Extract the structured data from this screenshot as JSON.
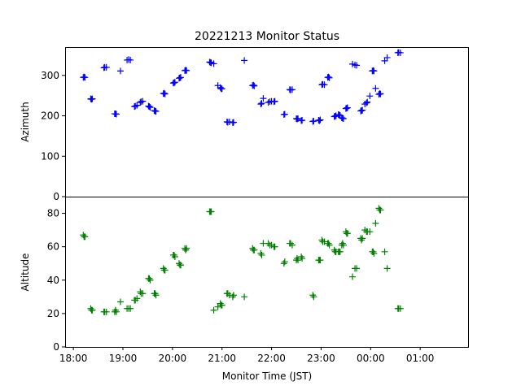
{
  "chart_data": {
    "type": "scatter",
    "title": "20221213 Monitor Status",
    "xlabel": "Monitor Time (JST)",
    "x_ticks": [
      "18:00",
      "19:00",
      "20:00",
      "21:00",
      "22:00",
      "23:00",
      "00:00",
      "01:00"
    ],
    "x_range": [
      "17:50",
      "01:58"
    ],
    "marker": "+",
    "panels": [
      {
        "ylabel": "Azimuth",
        "ylim": [
          0,
          370
        ],
        "y_ticks": [
          0,
          100,
          200,
          300
        ],
        "color": "#0000ff",
        "points": [
          [
            "18:12",
            295
          ],
          [
            "18:13",
            296
          ],
          [
            "18:14",
            295
          ],
          [
            "18:21",
            242
          ],
          [
            "18:22",
            241
          ],
          [
            "18:23",
            242
          ],
          [
            "18:37",
            319
          ],
          [
            "18:38",
            320
          ],
          [
            "18:40",
            320
          ],
          [
            "18:50",
            205
          ],
          [
            "18:51",
            205
          ],
          [
            "18:52",
            204
          ],
          [
            "18:57",
            311
          ],
          [
            "19:05",
            338
          ],
          [
            "19:07",
            339
          ],
          [
            "19:09",
            338
          ],
          [
            "19:14",
            223
          ],
          [
            "19:15",
            224
          ],
          [
            "19:17",
            226
          ],
          [
            "19:21",
            233
          ],
          [
            "19:22",
            235
          ],
          [
            "19:24",
            236
          ],
          [
            "19:31",
            224
          ],
          [
            "19:32",
            223
          ],
          [
            "19:33",
            221
          ],
          [
            "19:38",
            213
          ],
          [
            "19:39",
            212
          ],
          [
            "19:40",
            211
          ],
          [
            "19:49",
            255
          ],
          [
            "19:50",
            256
          ],
          [
            "19:51",
            254
          ],
          [
            "20:01",
            281
          ],
          [
            "20:02",
            282
          ],
          [
            "20:03",
            283
          ],
          [
            "20:08",
            293
          ],
          [
            "20:09",
            294
          ],
          [
            "20:10",
            295
          ],
          [
            "20:15",
            312
          ],
          [
            "20:16",
            313
          ],
          [
            "20:17",
            312
          ],
          [
            "20:45",
            333
          ],
          [
            "20:46",
            332
          ],
          [
            "20:47",
            331
          ],
          [
            "20:50",
            329
          ],
          [
            "20:55",
            275
          ],
          [
            "20:58",
            270
          ],
          [
            "20:59",
            267
          ],
          [
            "21:00",
            267
          ],
          [
            "21:06",
            185
          ],
          [
            "21:07",
            184
          ],
          [
            "21:09",
            185
          ],
          [
            "21:13",
            183
          ],
          [
            "21:14",
            184
          ],
          [
            "21:27",
            337
          ],
          [
            "21:37",
            275
          ],
          [
            "21:38",
            276
          ],
          [
            "21:39",
            274
          ],
          [
            "21:47",
            229
          ],
          [
            "21:48",
            231
          ],
          [
            "21:50",
            243
          ],
          [
            "21:56",
            233
          ],
          [
            "21:58",
            235
          ],
          [
            "22:00",
            236
          ],
          [
            "22:03",
            235
          ],
          [
            "22:04",
            236
          ],
          [
            "22:15",
            203
          ],
          [
            "22:16",
            204
          ],
          [
            "22:22",
            265
          ],
          [
            "22:23",
            264
          ],
          [
            "22:25",
            265
          ],
          [
            "22:30",
            193
          ],
          [
            "22:31",
            192
          ],
          [
            "22:32",
            193
          ],
          [
            "22:36",
            188
          ],
          [
            "22:37",
            189
          ],
          [
            "22:50",
            186
          ],
          [
            "22:51",
            187
          ],
          [
            "22:57",
            189
          ],
          [
            "22:58",
            188
          ],
          [
            "22:59",
            190
          ],
          [
            "23:01",
            277
          ],
          [
            "23:02",
            278
          ],
          [
            "23:04",
            277
          ],
          [
            "23:08",
            295
          ],
          [
            "23:09",
            296
          ],
          [
            "23:10",
            294
          ],
          [
            "23:16",
            198
          ],
          [
            "23:17",
            199
          ],
          [
            "23:18",
            200
          ],
          [
            "23:21",
            203
          ],
          [
            "23:22",
            202
          ],
          [
            "23:23",
            201
          ],
          [
            "23:25",
            195
          ],
          [
            "23:26",
            194
          ],
          [
            "23:27",
            193
          ],
          [
            "23:30",
            218
          ],
          [
            "23:31",
            219
          ],
          [
            "23:32",
            220
          ],
          [
            "23:38",
            328
          ],
          [
            "23:41",
            326
          ],
          [
            "23:43",
            325
          ],
          [
            "23:48",
            212
          ],
          [
            "23:49",
            213
          ],
          [
            "23:50",
            214
          ],
          [
            "23:53",
            229
          ],
          [
            "23:55",
            232
          ],
          [
            "23:56",
            234
          ],
          [
            "23:59",
            249
          ],
          [
            "00:02",
            311
          ],
          [
            "00:03",
            312
          ],
          [
            "00:04",
            311
          ],
          [
            "00:06",
            268
          ],
          [
            "00:10",
            253
          ],
          [
            "00:11",
            255
          ],
          [
            "00:12",
            254
          ],
          [
            "00:17",
            336
          ],
          [
            "00:20",
            344
          ],
          [
            "00:33",
            356
          ],
          [
            "00:34",
            357
          ],
          [
            "00:36",
            356
          ]
        ]
      },
      {
        "ylabel": "Altitude",
        "ylim": [
          0,
          90
        ],
        "y_ticks": [
          0,
          20,
          40,
          60,
          80
        ],
        "color": "#008000",
        "points": [
          [
            "18:12",
            67
          ],
          [
            "18:13",
            66
          ],
          [
            "18:14",
            66
          ],
          [
            "18:21",
            23
          ],
          [
            "18:22",
            22
          ],
          [
            "18:23",
            22
          ],
          [
            "18:37",
            21
          ],
          [
            "18:38",
            21
          ],
          [
            "18:40",
            21
          ],
          [
            "18:50",
            21
          ],
          [
            "18:51",
            22
          ],
          [
            "18:52",
            21
          ],
          [
            "18:57",
            27
          ],
          [
            "19:05",
            23
          ],
          [
            "19:07",
            23
          ],
          [
            "19:09",
            23
          ],
          [
            "19:14",
            28
          ],
          [
            "19:15",
            28
          ],
          [
            "19:17",
            29
          ],
          [
            "19:21",
            33
          ],
          [
            "19:22",
            32
          ],
          [
            "19:24",
            32
          ],
          [
            "19:31",
            41
          ],
          [
            "19:32",
            41
          ],
          [
            "19:33",
            40
          ],
          [
            "19:38",
            32
          ],
          [
            "19:39",
            32
          ],
          [
            "19:40",
            31
          ],
          [
            "19:49",
            47
          ],
          [
            "19:50",
            46
          ],
          [
            "19:51",
            46
          ],
          [
            "20:01",
            55
          ],
          [
            "20:02",
            55
          ],
          [
            "20:03",
            54
          ],
          [
            "20:08",
            50
          ],
          [
            "20:09",
            49
          ],
          [
            "20:10",
            49
          ],
          [
            "20:15",
            59
          ],
          [
            "20:16",
            58
          ],
          [
            "20:17",
            59
          ],
          [
            "20:45",
            81
          ],
          [
            "20:46",
            81
          ],
          [
            "20:47",
            81
          ],
          [
            "20:50",
            22
          ],
          [
            "20:55",
            24
          ],
          [
            "20:58",
            26
          ],
          [
            "20:59",
            25
          ],
          [
            "21:00",
            25
          ],
          [
            "21:06",
            32
          ],
          [
            "21:07",
            32
          ],
          [
            "21:09",
            31
          ],
          [
            "21:13",
            30
          ],
          [
            "21:14",
            31
          ],
          [
            "21:27",
            30
          ],
          [
            "21:37",
            59
          ],
          [
            "21:38",
            58
          ],
          [
            "21:39",
            58
          ],
          [
            "21:47",
            56
          ],
          [
            "21:48",
            55
          ],
          [
            "21:50",
            62
          ],
          [
            "21:56",
            62
          ],
          [
            "21:58",
            61
          ],
          [
            "22:00",
            61
          ],
          [
            "22:03",
            60
          ],
          [
            "22:04",
            60
          ],
          [
            "22:15",
            50
          ],
          [
            "22:16",
            51
          ],
          [
            "22:22",
            62
          ],
          [
            "22:23",
            62
          ],
          [
            "22:25",
            61
          ],
          [
            "22:30",
            52
          ],
          [
            "22:31",
            53
          ],
          [
            "22:32",
            52
          ],
          [
            "22:36",
            54
          ],
          [
            "22:37",
            53
          ],
          [
            "22:50",
            31
          ],
          [
            "22:51",
            30
          ],
          [
            "22:57",
            52
          ],
          [
            "22:58",
            52
          ],
          [
            "22:59",
            52
          ],
          [
            "23:01",
            64
          ],
          [
            "23:02",
            63
          ],
          [
            "23:04",
            63
          ],
          [
            "23:08",
            62
          ],
          [
            "23:09",
            62
          ],
          [
            "23:10",
            61
          ],
          [
            "23:16",
            58
          ],
          [
            "23:17",
            57
          ],
          [
            "23:18",
            57
          ],
          [
            "23:21",
            57
          ],
          [
            "23:22",
            57
          ],
          [
            "23:23",
            57
          ],
          [
            "23:25",
            61
          ],
          [
            "23:26",
            62
          ],
          [
            "23:27",
            61
          ],
          [
            "23:30",
            69
          ],
          [
            "23:31",
            68
          ],
          [
            "23:32",
            68
          ],
          [
            "23:38",
            42
          ],
          [
            "23:41",
            47
          ],
          [
            "23:43",
            47
          ],
          [
            "23:48",
            65
          ],
          [
            "23:49",
            64
          ],
          [
            "23:50",
            65
          ],
          [
            "23:53",
            70
          ],
          [
            "23:55",
            69
          ],
          [
            "23:56",
            69
          ],
          [
            "23:59",
            69
          ],
          [
            "00:02",
            57
          ],
          [
            "00:03",
            57
          ],
          [
            "00:04",
            56
          ],
          [
            "00:06",
            74
          ],
          [
            "00:10",
            83
          ],
          [
            "00:11",
            82
          ],
          [
            "00:12",
            82
          ],
          [
            "00:17",
            57
          ],
          [
            "00:20",
            47
          ],
          [
            "00:33",
            23
          ],
          [
            "00:34",
            23
          ],
          [
            "00:36",
            23
          ]
        ]
      }
    ]
  }
}
